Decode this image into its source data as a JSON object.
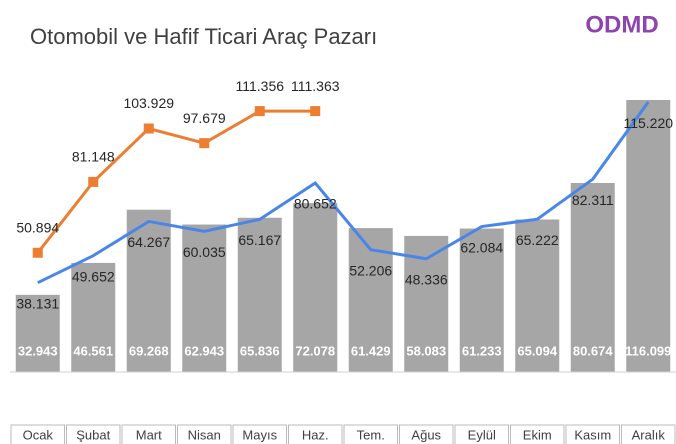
{
  "chart_data": {
    "type": "bar_line",
    "title": "Otomobil ve Hafif Ticari Araç Pazarı",
    "logo": "ODMD",
    "categories": [
      "Ocak",
      "Şubat",
      "Mart",
      "Nisan",
      "Mayıs",
      "Haz.",
      "Tem.",
      "Ağus",
      "Eylül",
      "Ekim",
      "Kasım",
      "Aralık"
    ],
    "values": [
      32943,
      46561,
      69268,
      62943,
      65836,
      72078,
      61429,
      58083,
      61233,
      65094,
      80674,
      116099
    ],
    "value_labels": [
      "32.943",
      "46.561",
      "69.268",
      "62.943",
      "65.836",
      "72.078",
      "61.429",
      "58.083",
      "61.233",
      "65.094",
      "80.674",
      "116.099"
    ],
    "color": "#a6a6a6",
    "series": [
      {
        "color": "#4a86e8",
        "values": [
          38131,
          49652,
          64267,
          60035,
          65167,
          80652,
          52206,
          48336,
          62084,
          65222,
          82311,
          115220
        ],
        "value_labels": [
          "38.131",
          "49.652",
          "64.267",
          "60.035",
          "65.167",
          "80.652",
          "52.206",
          "48.336",
          "62.084",
          "65.222",
          "82.311",
          "115.220"
        ]
      },
      {
        "color": "#ed7d31",
        "values": [
          50894,
          81148,
          103929,
          97679,
          111356,
          111363,
          null,
          null,
          null,
          null,
          null,
          null
        ],
        "value_labels": [
          "50.894",
          "81.148",
          "103.929",
          "97.679",
          "111.356",
          "111.363",
          null,
          null,
          null,
          null,
          null,
          null
        ]
      }
    ]
  }
}
